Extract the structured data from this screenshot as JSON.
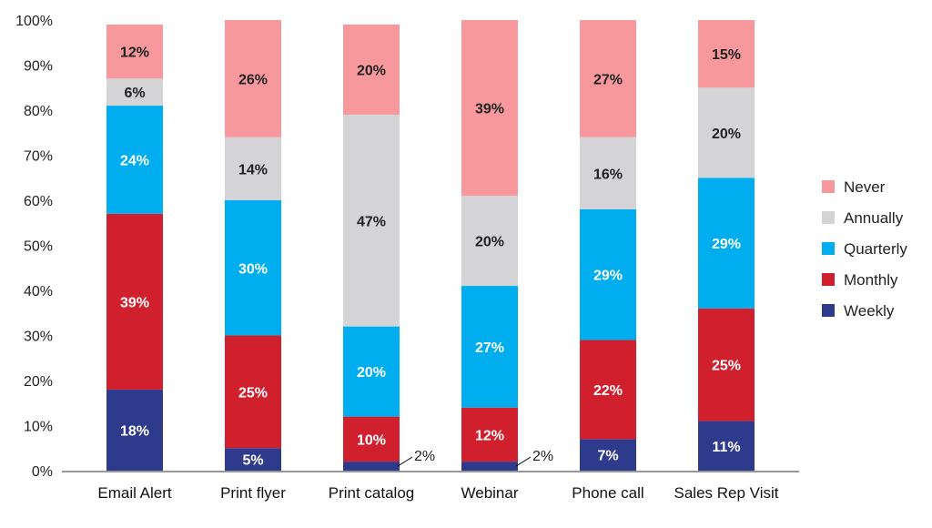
{
  "chart_data": {
    "type": "bar",
    "stacked": true,
    "categories": [
      "Email Alert",
      "Print flyer",
      "Print catalog",
      "Webinar",
      "Phone call",
      "Sales Rep Visit"
    ],
    "series": [
      {
        "name": "Weekly",
        "color": "#2e3a8c",
        "label_color": "#ffffff",
        "values": [
          18,
          5,
          2,
          2,
          7,
          11
        ]
      },
      {
        "name": "Monthly",
        "color": "#d0202e",
        "label_color": "#ffffff",
        "values": [
          39,
          25,
          10,
          12,
          22,
          25
        ]
      },
      {
        "name": "Quarterly",
        "color": "#00aeef",
        "label_color": "#ffffff",
        "values": [
          24,
          30,
          20,
          27,
          29,
          29
        ]
      },
      {
        "name": "Annually",
        "color": "#d4d4d6",
        "label_color": "#222222",
        "values": [
          6,
          14,
          47,
          20,
          16,
          20
        ]
      },
      {
        "name": "Never",
        "color": "#f7999c",
        "label_color": "#222222",
        "values": [
          12,
          26,
          20,
          39,
          27,
          15
        ]
      }
    ],
    "data_labels": [
      [
        "18%",
        "5%",
        "2%",
        "2%",
        "7%",
        "11%"
      ],
      [
        "39%",
        "25%",
        "10%",
        "12%",
        "22%",
        "25%"
      ],
      [
        "24%",
        "30%",
        "20%",
        "27%",
        "29%",
        "29%"
      ],
      [
        "6%",
        "14%",
        "47%",
        "20%",
        "16%",
        "20%"
      ],
      [
        "12%",
        "26%",
        "20%",
        "39%",
        "27%",
        "15%"
      ]
    ],
    "ylim": [
      0,
      100
    ],
    "yticks": [
      0,
      10,
      20,
      30,
      40,
      50,
      60,
      70,
      80,
      90,
      100
    ],
    "ytick_labels": [
      "0%",
      "10%",
      "20%",
      "30%",
      "40%",
      "50%",
      "60%",
      "70%",
      "80%",
      "90%",
      "100%"
    ],
    "legend_order": [
      "Never",
      "Annually",
      "Quarterly",
      "Monthly",
      "Weekly"
    ],
    "legend_position": "right",
    "grid": false
  }
}
